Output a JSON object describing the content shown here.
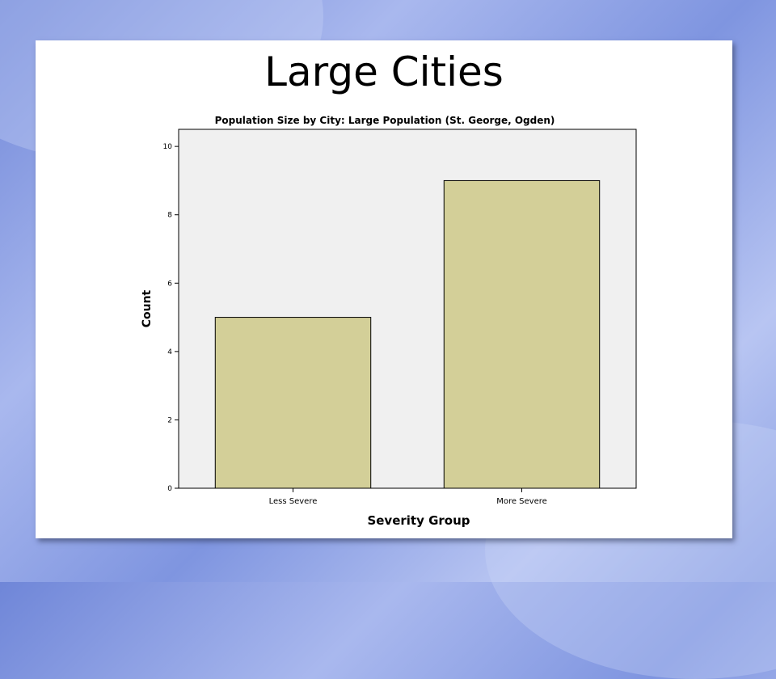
{
  "slide": {
    "title": "Large Cities"
  },
  "colors": {
    "background": "#8a9fe3",
    "plot_area": "#f0f0f0",
    "bar_fill": "#d3cf98",
    "bar_stroke": "#000000"
  },
  "chart_data": {
    "type": "bar",
    "title": "Population Size by City: Large Population (St. George, Ogden)",
    "xlabel": "Severity Group",
    "ylabel": "Count",
    "categories": [
      "Less Severe",
      "More Severe"
    ],
    "values": [
      5,
      9
    ],
    "ylim": [
      0,
      10.5
    ],
    "yticks": [
      0,
      2,
      4,
      6,
      8,
      10
    ],
    "grid": false,
    "legend": "none"
  }
}
